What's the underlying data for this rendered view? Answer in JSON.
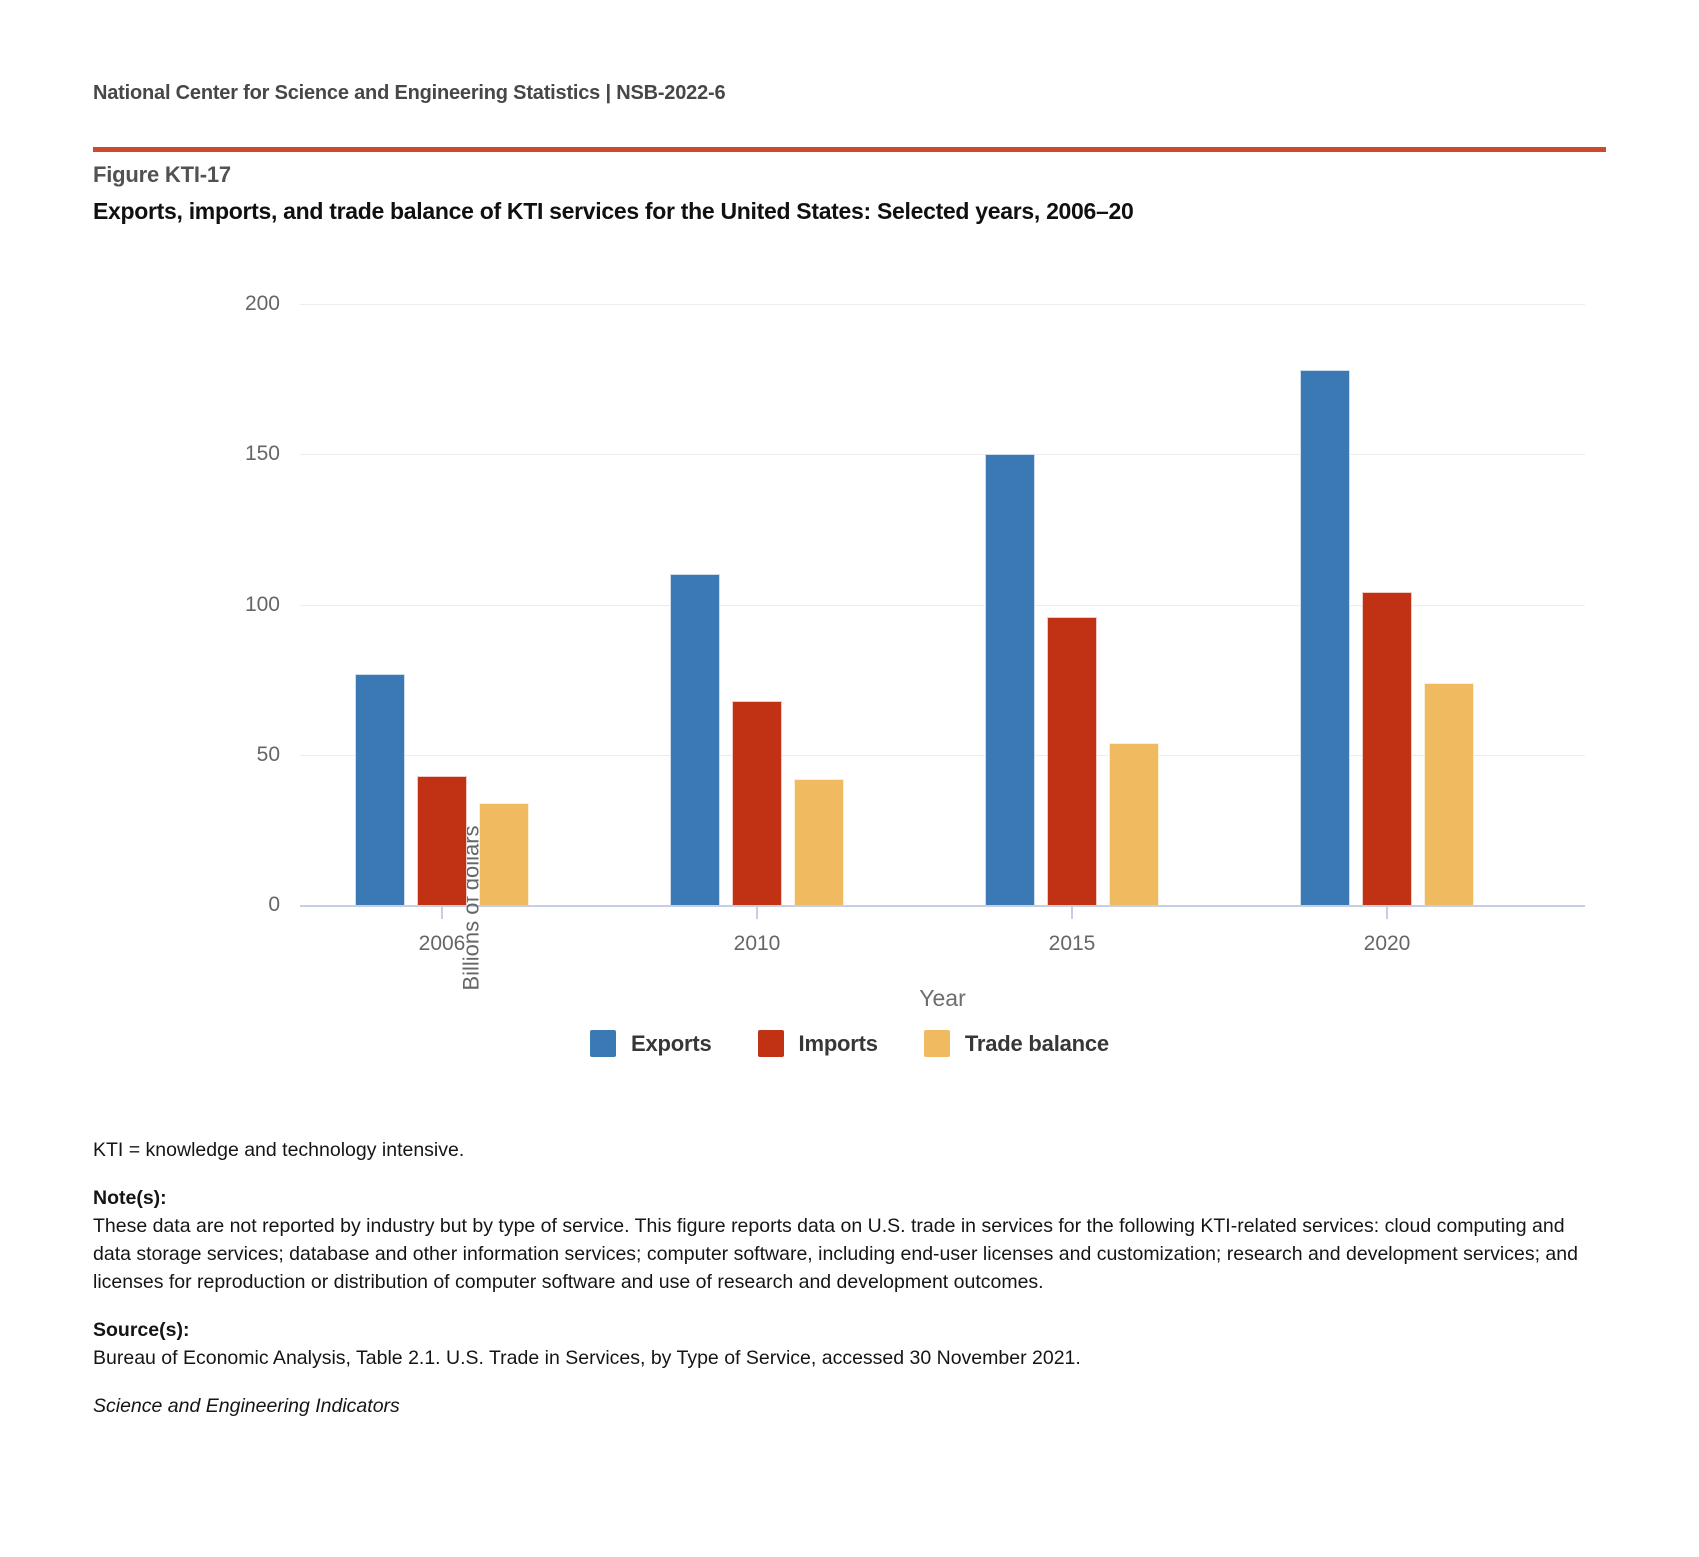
{
  "header": {
    "text": "National Center for Science and Engineering Statistics  |  NSB-2022-6"
  },
  "figure_label": "Figure KTI-17",
  "title": "Exports, imports, and trade balance of KTI services for the United States: Selected years, 2006–20",
  "chart_data": {
    "type": "bar",
    "categories": [
      "2006",
      "2010",
      "2015",
      "2020"
    ],
    "series": [
      {
        "name": "Exports",
        "color": "#3A79B4",
        "values": [
          77,
          110,
          150,
          178
        ]
      },
      {
        "name": "Imports",
        "color": "#C13113",
        "values": [
          43,
          68,
          96,
          104
        ]
      },
      {
        "name": "Trade balance",
        "color": "#F0BA61",
        "values": [
          34,
          42,
          54,
          74
        ]
      }
    ],
    "title": "",
    "xlabel": "Year",
    "ylabel": "Billions of dollars",
    "ylim": [
      0,
      200
    ],
    "yticks": [
      0,
      50,
      100,
      150,
      200
    ],
    "grid": true,
    "legend_position": "bottom"
  },
  "footer": {
    "abbreviation": "KTI = knowledge and technology intensive.",
    "notes_label": "Note(s):",
    "notes": "These data are not reported by industry but by type of service. This figure reports data on U.S. trade in services for the following KTI-related services: cloud computing and data storage services; database and other information services; computer software, including end-user licenses and customization; research and development services; and licenses for reproduction or distribution of computer software and use of research and development outcomes.",
    "source_label": "Source(s):",
    "source": "Bureau of Economic Analysis, Table 2.1. U.S. Trade in Services, by Type of Service, accessed 30 November 2021.",
    "credit": "Science and Engineering Indicators"
  }
}
